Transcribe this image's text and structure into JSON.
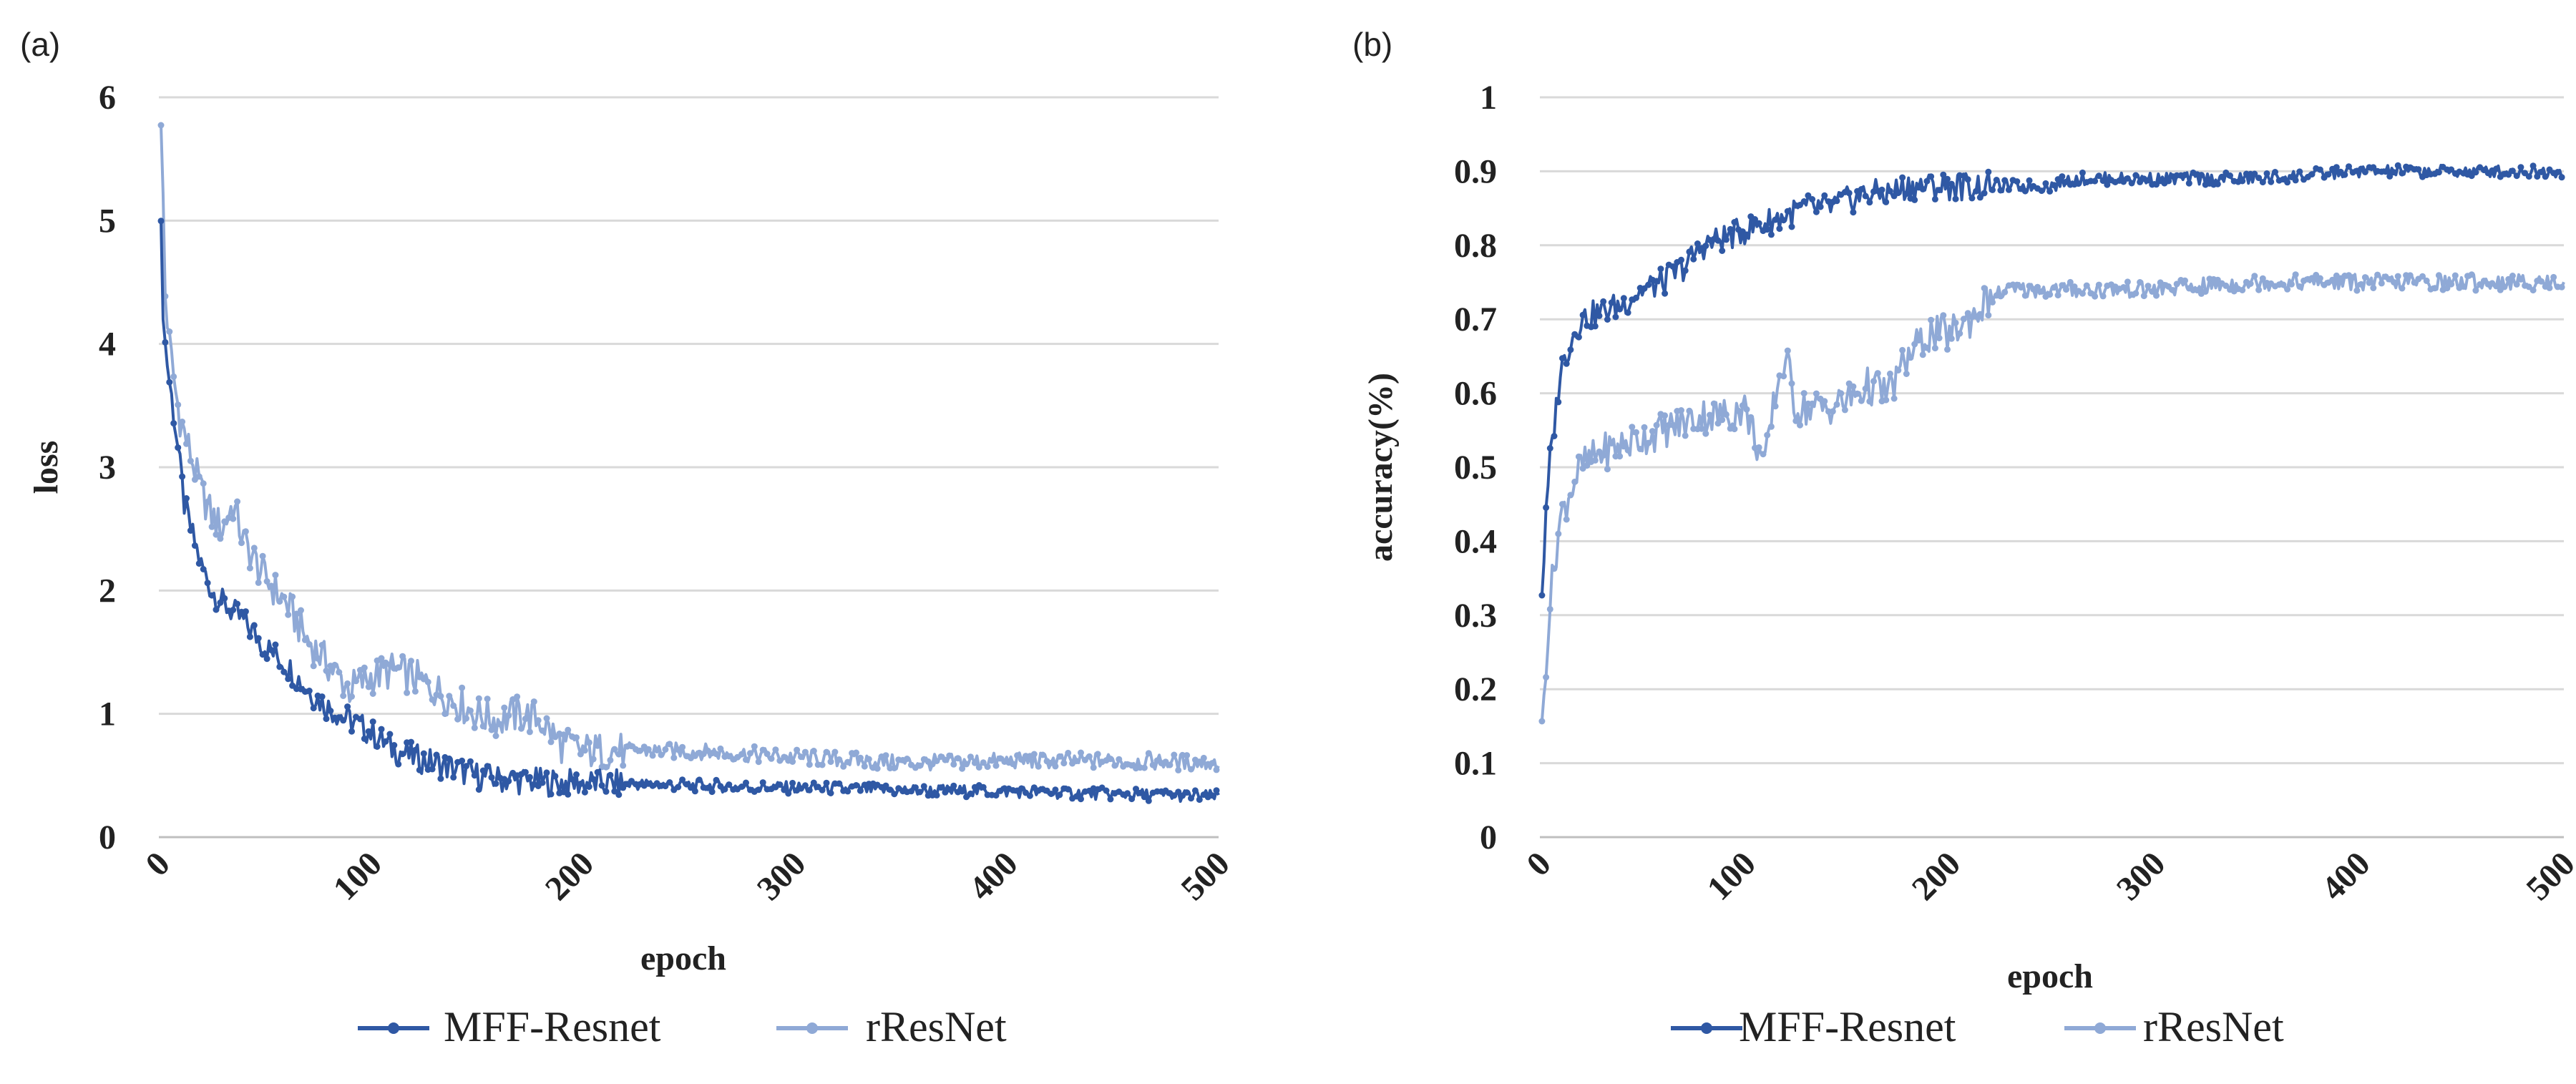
{
  "chart_data": [
    {
      "panel": "(a)",
      "type": "line",
      "xlabel": "epoch",
      "ylabel": "loss",
      "xlim": [
        0,
        500
      ],
      "ylim": [
        0,
        6
      ],
      "xticks": [
        0,
        100,
        200,
        300,
        400,
        500
      ],
      "yticks": [
        0,
        1,
        2,
        3,
        4,
        5,
        6
      ],
      "grid": true,
      "legend_position": "bottom",
      "series": [
        {
          "name": "MFF-Resnet",
          "color": "#2f58a4",
          "x": [
            1,
            2,
            3,
            5,
            8,
            10,
            12,
            15,
            20,
            25,
            30,
            40,
            50,
            60,
            70,
            80,
            90,
            100,
            110,
            120,
            130,
            140,
            150,
            160,
            170,
            180,
            190,
            200,
            250,
            300,
            350,
            400,
            450,
            500
          ],
          "values": [
            4.9,
            4.3,
            4.0,
            3.7,
            3.3,
            3.0,
            2.7,
            2.5,
            2.2,
            2.0,
            1.9,
            1.75,
            1.55,
            1.4,
            1.2,
            1.05,
            0.95,
            0.85,
            0.72,
            0.65,
            0.6,
            0.55,
            0.5,
            0.47,
            0.46,
            0.45,
            0.44,
            0.44,
            0.42,
            0.4,
            0.38,
            0.37,
            0.35,
            0.33
          ]
        },
        {
          "name": "rResNet",
          "color": "#8fa9d6",
          "x": [
            1,
            2,
            3,
            5,
            8,
            10,
            15,
            20,
            25,
            30,
            35,
            40,
            50,
            60,
            70,
            80,
            90,
            100,
            110,
            120,
            130,
            140,
            150,
            160,
            170,
            180,
            190,
            200,
            250,
            300,
            350,
            400,
            450,
            500
          ],
          "values": [
            5.7,
            5.2,
            4.4,
            4.0,
            3.6,
            3.4,
            3.1,
            2.8,
            2.6,
            2.5,
            2.7,
            2.4,
            2.1,
            1.9,
            1.6,
            1.4,
            1.2,
            1.3,
            1.35,
            1.3,
            1.2,
            1.1,
            1.0,
            0.95,
            1.0,
            0.95,
            0.75,
            0.7,
            0.7,
            0.65,
            0.6,
            0.62,
            0.62,
            0.6
          ]
        }
      ]
    },
    {
      "panel": "(b)",
      "type": "line",
      "xlabel": "epoch",
      "ylabel": "accuracy(%)",
      "xlim": [
        0,
        500
      ],
      "ylim": [
        0,
        1
      ],
      "xticks": [
        0,
        100,
        200,
        300,
        400,
        500
      ],
      "yticks": [
        0,
        0.1,
        0.2,
        0.3,
        0.4,
        0.5,
        0.6,
        0.7,
        0.8,
        0.9,
        1
      ],
      "grid": true,
      "legend_position": "bottom",
      "series": [
        {
          "name": "MFF-Resnet",
          "color": "#2f58a4",
          "x": [
            1,
            3,
            5,
            8,
            10,
            15,
            20,
            30,
            40,
            50,
            60,
            70,
            80,
            90,
            100,
            110,
            120,
            130,
            140,
            150,
            160,
            170,
            180,
            190,
            200,
            210,
            220,
            230,
            240,
            250,
            260,
            300,
            350,
            400,
            450,
            500
          ],
          "values": [
            0.33,
            0.43,
            0.51,
            0.58,
            0.63,
            0.67,
            0.7,
            0.71,
            0.72,
            0.74,
            0.75,
            0.77,
            0.8,
            0.81,
            0.82,
            0.83,
            0.84,
            0.85,
            0.85,
            0.86,
            0.87,
            0.87,
            0.88,
            0.88,
            0.88,
            0.88,
            0.88,
            0.88,
            0.88,
            0.88,
            0.89,
            0.89,
            0.89,
            0.9,
            0.9,
            0.9
          ]
        },
        {
          "name": "rResNet",
          "color": "#8fa9d6",
          "x": [
            1,
            3,
            5,
            8,
            10,
            15,
            20,
            30,
            40,
            50,
            60,
            70,
            80,
            90,
            100,
            110,
            115,
            120,
            125,
            130,
            140,
            150,
            160,
            170,
            180,
            190,
            200,
            210,
            220,
            230,
            250,
            300,
            350,
            400,
            450,
            500
          ],
          "values": [
            0.14,
            0.24,
            0.32,
            0.39,
            0.43,
            0.47,
            0.5,
            0.52,
            0.53,
            0.54,
            0.55,
            0.56,
            0.57,
            0.57,
            0.58,
            0.5,
            0.6,
            0.65,
            0.58,
            0.58,
            0.58,
            0.59,
            0.61,
            0.6,
            0.65,
            0.68,
            0.68,
            0.7,
            0.73,
            0.74,
            0.74,
            0.74,
            0.75,
            0.75,
            0.75,
            0.75
          ]
        }
      ]
    }
  ]
}
